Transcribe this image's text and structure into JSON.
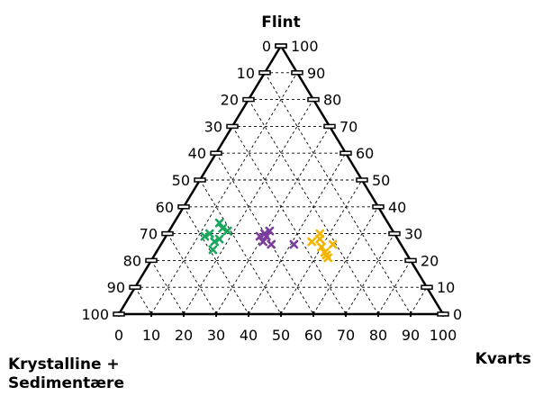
{
  "chart_data": {
    "type": "scatter",
    "subtype": "ternary",
    "axes": {
      "top": "Flint",
      "right": "Kvarts",
      "left_line1": "Krystalline +",
      "left_line2": "Sedimentære"
    },
    "ticks": {
      "values": [
        0,
        10,
        20,
        30,
        40,
        50,
        60,
        70,
        80,
        90,
        100
      ],
      "labels": [
        "0",
        "10",
        "20",
        "30",
        "40",
        "50",
        "60",
        "70",
        "80",
        "90",
        "100"
      ]
    },
    "grid": true,
    "marker": "x",
    "series": [
      {
        "color": "#1aa85f",
        "points": [
          {
            "flint": 34,
            "kvarts": 14
          },
          {
            "flint": 32,
            "kvarts": 16
          },
          {
            "flint": 31,
            "kvarts": 18
          },
          {
            "flint": 30,
            "kvarts": 13
          },
          {
            "flint": 29,
            "kvarts": 12
          },
          {
            "flint": 28,
            "kvarts": 17
          },
          {
            "flint": 27,
            "kvarts": 16
          },
          {
            "flint": 24,
            "kvarts": 17
          }
        ]
      },
      {
        "color": "#7a3d9e",
        "points": [
          {
            "flint": 31,
            "kvarts": 31
          },
          {
            "flint": 30,
            "kvarts": 30
          },
          {
            "flint": 29,
            "kvarts": 29
          },
          {
            "flint": 29,
            "kvarts": 31
          },
          {
            "flint": 27,
            "kvarts": 31
          },
          {
            "flint": 26,
            "kvarts": 34
          },
          {
            "flint": 26,
            "kvarts": 41
          }
        ]
      },
      {
        "color": "#f4b400",
        "points": [
          {
            "flint": 30,
            "kvarts": 47
          },
          {
            "flint": 28,
            "kvarts": 48
          },
          {
            "flint": 27,
            "kvarts": 46
          },
          {
            "flint": 26,
            "kvarts": 53
          },
          {
            "flint": 25,
            "kvarts": 50
          },
          {
            "flint": 23,
            "kvarts": 52
          },
          {
            "flint": 22,
            "kvarts": 53
          },
          {
            "flint": 21,
            "kvarts": 54
          }
        ]
      }
    ]
  }
}
